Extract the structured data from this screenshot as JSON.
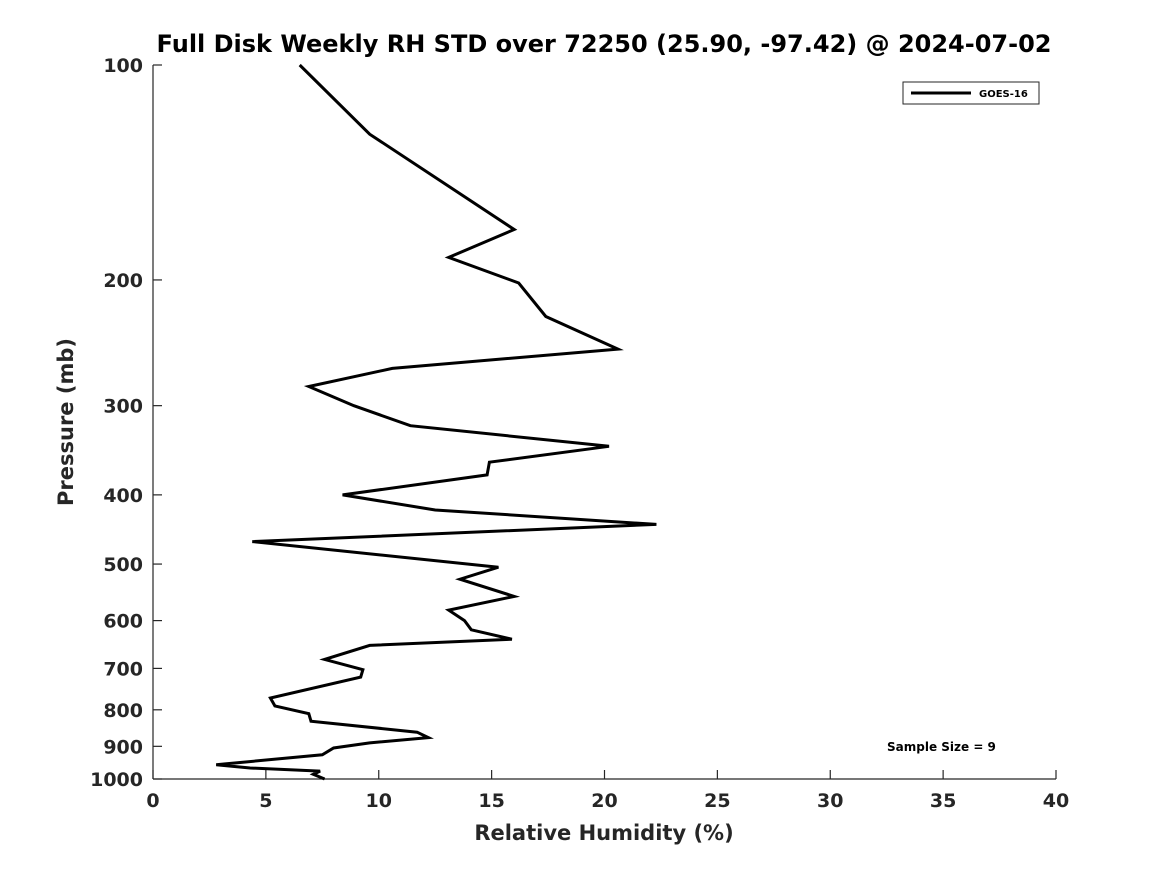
{
  "chart_data": {
    "type": "line",
    "title": "Full Disk Weekly RH STD over 72250 (25.90, -97.42) @ 2024-07-02",
    "xlabel": "Relative Humidity (%)",
    "ylabel": "Pressure (mb)",
    "xlim": [
      0,
      40
    ],
    "ylim": [
      100,
      1000
    ],
    "yscale": "log",
    "y_reversed": true,
    "xticks": [
      0,
      5,
      10,
      15,
      20,
      25,
      30,
      35,
      40
    ],
    "yticks": [
      100,
      200,
      300,
      400,
      500,
      600,
      700,
      800,
      900,
      1000
    ],
    "grid": false,
    "legend_position": "top-right",
    "annotation": "Sample Size = 9",
    "series": [
      {
        "name": "GOES-16",
        "color": "#000000",
        "points": [
          [
            6.5,
            100
          ],
          [
            9.6,
            125
          ],
          [
            13.4,
            150
          ],
          [
            16.0,
            170
          ],
          [
            13.1,
            186
          ],
          [
            16.2,
            202
          ],
          [
            17.4,
            225
          ],
          [
            20.6,
            250
          ],
          [
            10.6,
            266
          ],
          [
            6.9,
            282
          ],
          [
            8.9,
            300
          ],
          [
            11.4,
            320
          ],
          [
            20.2,
            342
          ],
          [
            14.9,
            360
          ],
          [
            14.8,
            375
          ],
          [
            8.4,
            400
          ],
          [
            12.5,
            420
          ],
          [
            22.3,
            440
          ],
          [
            4.4,
            465
          ],
          [
            15.3,
            505
          ],
          [
            13.6,
            525
          ],
          [
            16.0,
            555
          ],
          [
            13.1,
            580
          ],
          [
            13.8,
            600
          ],
          [
            14.1,
            618
          ],
          [
            15.9,
            637
          ],
          [
            9.6,
            650
          ],
          [
            7.6,
            680
          ],
          [
            9.3,
            703
          ],
          [
            9.2,
            720
          ],
          [
            5.2,
            770
          ],
          [
            5.4,
            790
          ],
          [
            6.9,
            810
          ],
          [
            7.0,
            830
          ],
          [
            11.7,
            860
          ],
          [
            12.2,
            875
          ],
          [
            9.6,
            890
          ],
          [
            8.0,
            905
          ],
          [
            7.5,
            925
          ],
          [
            2.8,
            955
          ],
          [
            4.3,
            965
          ],
          [
            7.4,
            975
          ],
          [
            7.1,
            985
          ],
          [
            7.6,
            1000
          ]
        ]
      }
    ]
  }
}
